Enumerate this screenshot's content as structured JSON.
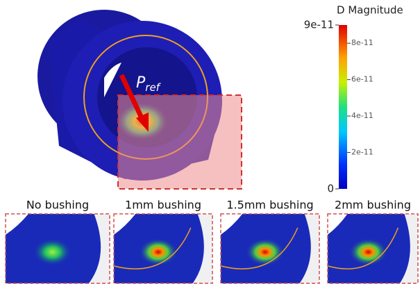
{
  "main_view": {
    "label": "P",
    "label_subscript": "ref"
  },
  "colorbar": {
    "title": "D Magnitude",
    "ticks": [
      {
        "value": 9e-11,
        "label": "9e-11"
      },
      {
        "value": 8e-11,
        "label": "8e-11"
      },
      {
        "value": 6e-11,
        "label": "6e-11"
      },
      {
        "value": 4e-11,
        "label": "4e-11"
      },
      {
        "value": 2e-11,
        "label": "2e-11"
      },
      {
        "value": 0,
        "label": "0"
      }
    ]
  },
  "panels": [
    {
      "title": "No bushing"
    },
    {
      "title": "1mm bushing"
    },
    {
      "title": "1.5mm bushing"
    },
    {
      "title": "2mm bushing"
    }
  ]
}
